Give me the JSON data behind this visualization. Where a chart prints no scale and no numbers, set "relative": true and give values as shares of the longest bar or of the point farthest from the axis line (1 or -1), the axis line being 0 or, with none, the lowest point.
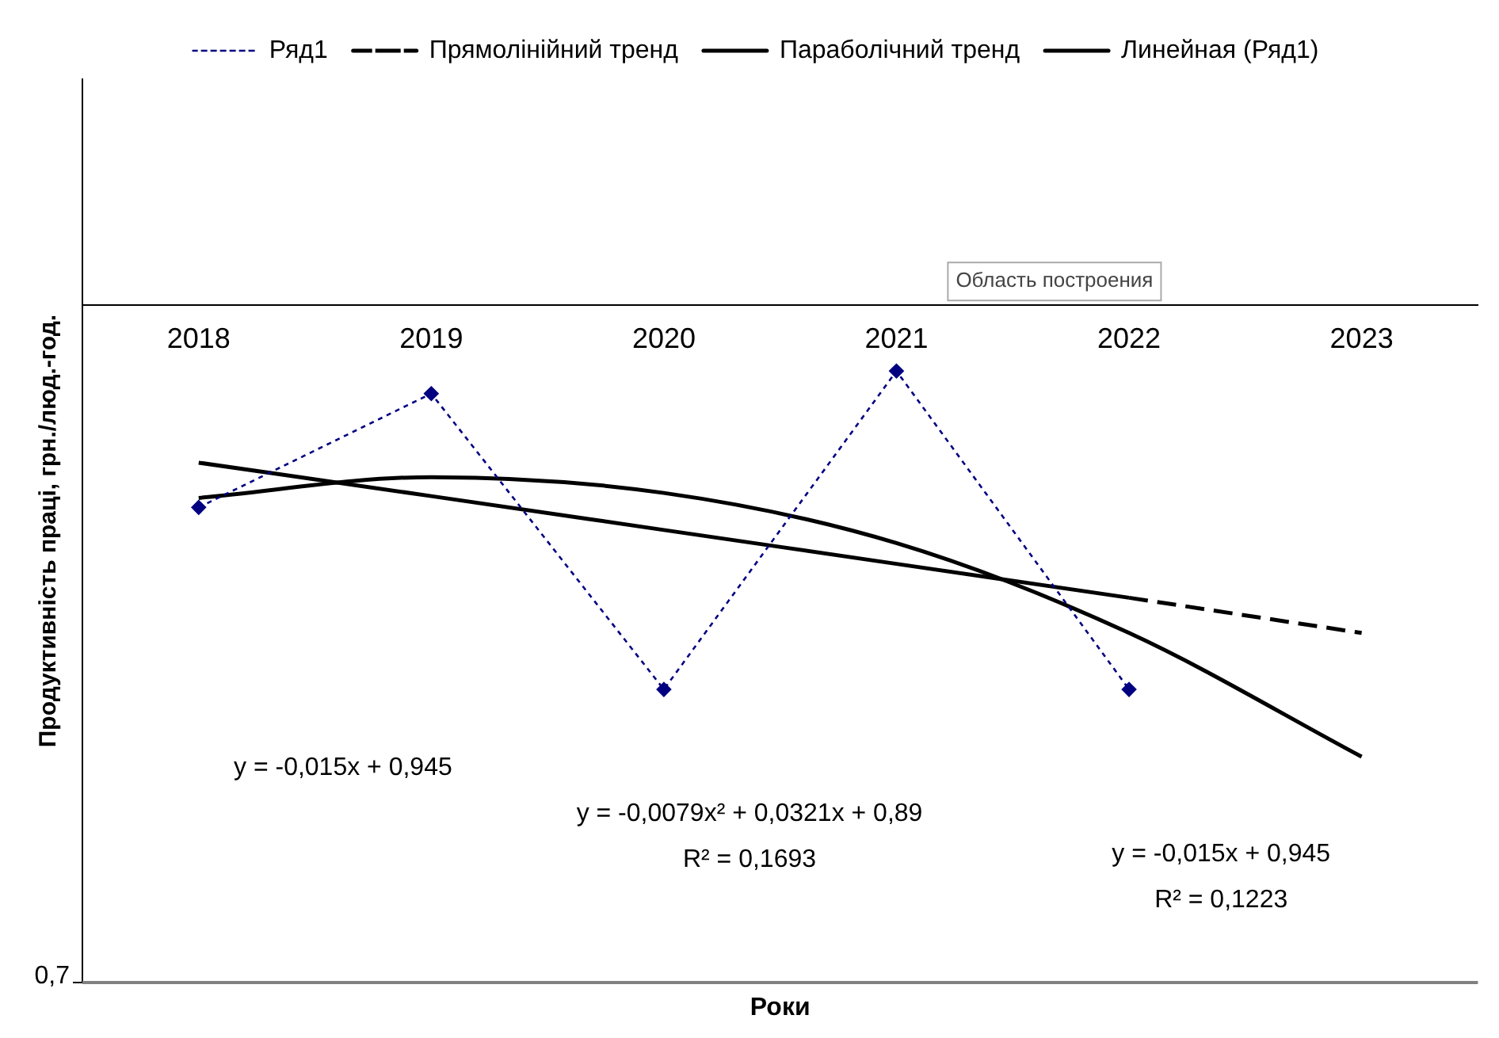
{
  "chart_data": {
    "type": "line",
    "relative": true,
    "ylabel": "Продуктивність праці, грн./люд.-год.",
    "categories": [
      "2018",
      "2019",
      "2020",
      "2021",
      "2022",
      "2023"
    ],
    "series": [
      {
        "name": "Ряд1",
        "color": "#000080",
        "marker": "diamond",
        "line_style": "dotted",
        "values": [
          -0.448,
          -0.196,
          -0.851,
          -0.146,
          -0.851,
          null
        ]
      },
      {
        "name": "Прямолінійний тренд",
        "color": "#000000",
        "marker": "none",
        "line_style": "dashed",
        "values": [
          null,
          null,
          null,
          null,
          -0.648,
          -0.726
        ]
      },
      {
        "name": "Параболічний тренд",
        "color": "#000000",
        "marker": "none",
        "line_style": "solid",
        "values": [
          -0.427,
          -0.381,
          -0.416,
          -0.527,
          -0.726,
          -1
        ]
      },
      {
        "name": "Линейная (Ряд1)",
        "color": "#000000",
        "marker": "none",
        "line_style": "solid",
        "values": [
          -0.349,
          -0.423,
          -0.498,
          -0.573,
          -0.648,
          null
        ]
      }
    ],
    "annotations": [
      "y = -0,015x + 0,945",
      "y = -0,0079x² + 0,0321x + 0,89",
      "R² = 0,1693",
      "y = -0,015x + 0,945",
      "R² = 0,1223",
      "0,7",
      "Область построения",
      "Роки"
    ],
    "legend": "top",
    "grid": false
  }
}
